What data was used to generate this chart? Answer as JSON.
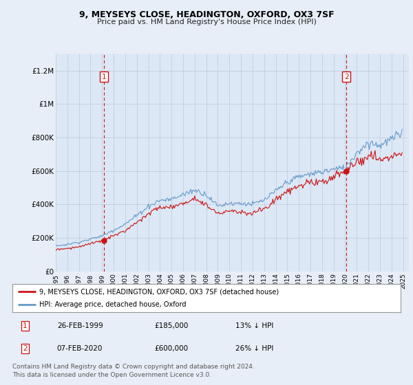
{
  "title": "9, MEYSEYS CLOSE, HEADINGTON, OXFORD, OX3 7SF",
  "subtitle": "Price paid vs. HM Land Registry's House Price Index (HPI)",
  "ylabel_ticks": [
    "£0",
    "£200K",
    "£400K",
    "£600K",
    "£800K",
    "£1M",
    "£1.2M"
  ],
  "ytick_values": [
    0,
    200000,
    400000,
    600000,
    800000,
    1000000,
    1200000
  ],
  "ylim": [
    0,
    1300000
  ],
  "xlim_start": 1995.0,
  "xlim_end": 2025.5,
  "background_color": "#e8eef7",
  "plot_bg_color": "#dce8f5",
  "hpi_color": "#6699cc",
  "price_color": "#cc1111",
  "vline_color": "#cc1111",
  "grid_color": "#c0c8d8",
  "purchase1_year": 1999.15,
  "purchase1_price": 185000,
  "purchase2_year": 2020.1,
  "purchase2_price": 600000,
  "legend_label1": "9, MEYSEYS CLOSE, HEADINGTON, OXFORD, OX3 7SF (detached house)",
  "legend_label2": "HPI: Average price, detached house, Oxford",
  "table_row1": [
    "1",
    "26-FEB-1999",
    "£185,000",
    "13% ↓ HPI"
  ],
  "table_row2": [
    "2",
    "07-FEB-2020",
    "£600,000",
    "26% ↓ HPI"
  ],
  "footnote": "Contains HM Land Registry data © Crown copyright and database right 2024.\nThis data is licensed under the Open Government Licence v3.0."
}
